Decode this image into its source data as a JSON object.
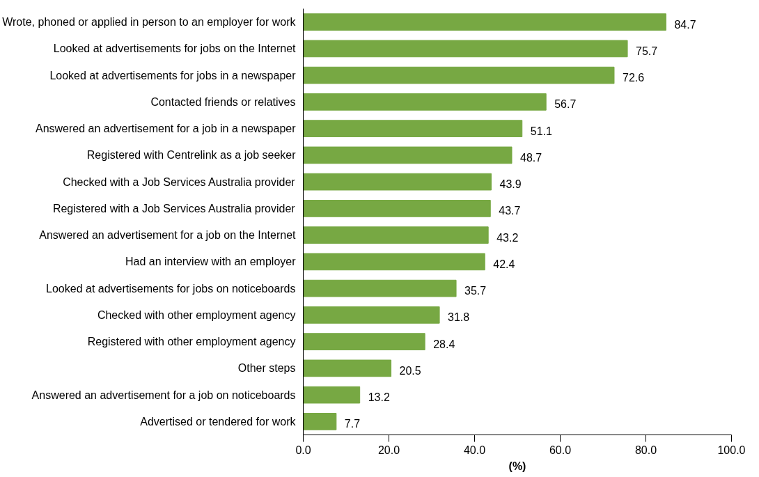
{
  "chart_data": {
    "type": "bar",
    "orientation": "horizontal",
    "xlabel": "(%)",
    "categories": [
      "Wrote, phoned or applied in person to an employer for work",
      "Looked at advertisements for jobs on the Internet",
      "Looked at advertisements for jobs in a newspaper",
      "Contacted friends or relatives",
      "Answered an advertisement for a job in a newspaper",
      "Registered with Centrelink as a job seeker",
      "Checked with a Job Services Australia provider",
      "Registered with a Job Services Australia provider",
      "Answered an advertisement for a job on the Internet",
      "Had an interview with an employer",
      "Looked at advertisements for jobs on noticeboards",
      "Checked with other employment agency",
      "Registered with other employment agency",
      "Other steps",
      "Answered an advertisement for a job on noticeboards",
      "Advertised or tendered for work"
    ],
    "values": [
      84.7,
      75.7,
      72.6,
      56.7,
      51.1,
      48.7,
      43.9,
      43.7,
      43.2,
      42.4,
      35.7,
      31.8,
      28.4,
      20.5,
      13.2,
      7.7
    ],
    "color": "#77a843",
    "data_labels": true,
    "grid": false,
    "xlim": [
      0,
      100
    ],
    "xticks": [
      {
        "value": 0,
        "label": "0.0"
      },
      {
        "value": 20,
        "label": "20.0"
      },
      {
        "value": 40,
        "label": "40.0"
      },
      {
        "value": 60,
        "label": "60.0"
      },
      {
        "value": 80,
        "label": "80.0"
      },
      {
        "value": 100,
        "label": "100.0"
      }
    ]
  }
}
